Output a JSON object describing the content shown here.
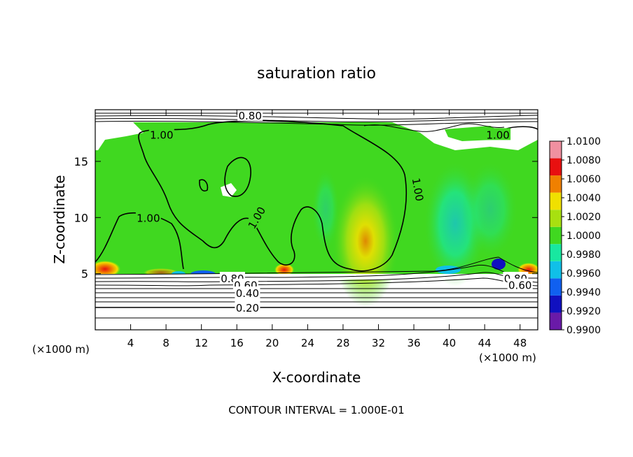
{
  "chart_data": {
    "type": "heatmap",
    "title": "saturation ratio",
    "xlabel": "X-coordinate",
    "ylabel": "Z-coordinate",
    "x_unit_left": "(×1000 m)",
    "x_unit_right": "(×1000 m)",
    "xlim": [
      0,
      50
    ],
    "ylim": [
      0,
      19.6
    ],
    "x_ticks": [
      4,
      8,
      12,
      16,
      20,
      24,
      28,
      32,
      36,
      40,
      44,
      48
    ],
    "x_tick_labels": [
      "4",
      "8",
      "12",
      "16",
      "20",
      "24",
      "28",
      "32",
      "36",
      "40",
      "44",
      "48"
    ],
    "y_ticks": [
      5,
      10,
      15
    ],
    "y_tick_labels": [
      "5",
      "10",
      "15"
    ],
    "colorbar": {
      "levels": [
        0.99,
        0.992,
        0.994,
        0.996,
        0.998,
        1.0,
        1.002,
        1.004,
        1.006,
        1.008,
        1.01
      ],
      "labels": [
        "0.9900",
        "0.9920",
        "0.9940",
        "0.9960",
        "0.9980",
        "1.0000",
        "1.0020",
        "1.0040",
        "1.0060",
        "1.0080",
        "1.0100"
      ],
      "colors": [
        "#6a1aa8",
        "#1010c0",
        "#1060f0",
        "#10c0e8",
        "#18e8a0",
        "#40d820",
        "#a8e010",
        "#f0e000",
        "#f08000",
        "#e81010",
        "#f090a0"
      ]
    },
    "contour_labels": [
      {
        "text": "0.80",
        "x": 17.5,
        "z": 19.1
      },
      {
        "text": "1.00",
        "x": 7.5,
        "z": 17.4
      },
      {
        "text": "1.00",
        "x": 36.5,
        "z": 12.5,
        "rotate": 80
      },
      {
        "text": "1.00",
        "x": 45.5,
        "z": 17.4
      },
      {
        "text": "1.00",
        "x": 6.0,
        "z": 10.0
      },
      {
        "text": "1.00",
        "x": 18.2,
        "z": 10.0,
        "rotate": -60
      },
      {
        "text": "0.80",
        "x": 15.5,
        "z": 4.6
      },
      {
        "text": "0.60",
        "x": 17.0,
        "z": 4.0
      },
      {
        "text": "0.40",
        "x": 17.2,
        "z": 3.3
      },
      {
        "text": "0.20",
        "x": 17.2,
        "z": 2.0
      },
      {
        "text": "0.80",
        "x": 47.5,
        "z": 4.6
      },
      {
        "text": "0.60",
        "x": 48.0,
        "z": 4.0
      }
    ],
    "annotation": "CONTOUR INTERVAL = 1.000E-01"
  }
}
